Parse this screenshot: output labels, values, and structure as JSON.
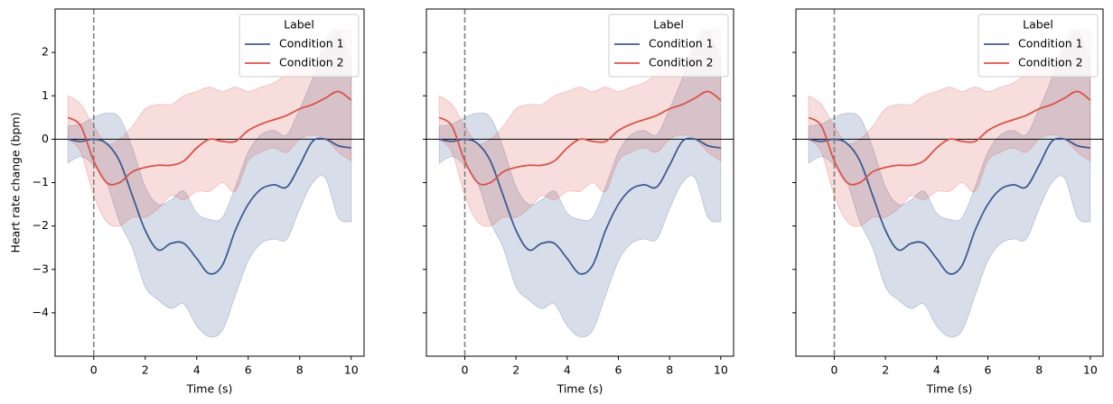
{
  "chart_data": [
    {
      "type": "line",
      "xlabel": "Time (s)",
      "ylabel": "Heart rate change (bpm)",
      "legend_title": "Label",
      "legend": "upper right",
      "show_ytick_labels": true,
      "xlim": [
        -1.5,
        10.5
      ],
      "ylim": [
        -5.0,
        3.0
      ],
      "xticks": [
        0,
        2,
        4,
        6,
        8,
        10
      ],
      "yticks": [
        {
          "value": -4,
          "label": "−4"
        },
        {
          "value": -3,
          "label": "−3"
        },
        {
          "value": -2,
          "label": "−2"
        },
        {
          "value": -1,
          "label": "−1"
        },
        0,
        1,
        2
      ],
      "axhline": 0,
      "axvline": 0,
      "x": [
        -1,
        -0.5,
        0,
        0.5,
        1,
        1.5,
        2,
        2.5,
        3,
        3.5,
        4,
        4.5,
        5,
        5.5,
        6,
        6.5,
        7,
        7.5,
        8,
        8.5,
        9,
        9.5,
        10
      ],
      "series": [
        {
          "name": "Condition 1",
          "color": "#3d5a91",
          "values": [
            0.0,
            -0.05,
            0.0,
            -0.1,
            -0.5,
            -1.3,
            -2.1,
            -2.55,
            -2.4,
            -2.4,
            -2.75,
            -3.1,
            -2.9,
            -2.1,
            -1.5,
            -1.15,
            -1.05,
            -1.1,
            -0.6,
            -0.05,
            0.0,
            -0.15,
            -0.2
          ],
          "lower": [
            -0.55,
            -0.4,
            -0.6,
            -1.0,
            -1.9,
            -2.5,
            -3.4,
            -3.7,
            -3.9,
            -3.8,
            -4.3,
            -4.55,
            -4.4,
            -3.6,
            -2.8,
            -2.4,
            -2.3,
            -2.3,
            -1.6,
            -1.0,
            -0.9,
            -1.8,
            -1.9
          ],
          "upper": [
            0.3,
            0.35,
            0.5,
            0.6,
            0.5,
            -0.2,
            -1.1,
            -1.5,
            -1.4,
            -1.2,
            -1.7,
            -1.85,
            -1.8,
            -1.1,
            -0.3,
            0.1,
            0.2,
            0.1,
            0.7,
            1.4,
            2.3,
            2.5,
            1.8
          ]
        },
        {
          "name": "Condition 2",
          "color": "#d9534a",
          "values": [
            0.5,
            0.3,
            -0.5,
            -1.0,
            -1.0,
            -0.75,
            -0.65,
            -0.6,
            -0.6,
            -0.5,
            -0.2,
            0.0,
            -0.05,
            -0.05,
            0.2,
            0.35,
            0.45,
            0.55,
            0.7,
            0.8,
            0.95,
            1.1,
            0.9
          ],
          "lower": [
            0.0,
            -0.3,
            -1.3,
            -1.9,
            -2.0,
            -1.8,
            -1.8,
            -1.6,
            -1.3,
            -1.4,
            -1.2,
            -1.2,
            -1.0,
            -1.2,
            -0.5,
            -0.3,
            -0.2,
            -0.3,
            0.0,
            0.1,
            0.0,
            -0.3,
            -0.5
          ],
          "upper": [
            1.0,
            0.8,
            0.3,
            -0.1,
            0.0,
            0.3,
            0.7,
            0.8,
            0.8,
            1.0,
            1.1,
            1.2,
            1.1,
            1.2,
            1.1,
            1.2,
            1.3,
            1.5,
            1.7,
            1.6,
            2.1,
            2.5,
            2.5
          ]
        }
      ]
    },
    {
      "type": "line",
      "xlabel": "Time (s)",
      "legend_title": "Label",
      "legend": "upper right",
      "show_ytick_labels": false,
      "xlim": [
        -1.5,
        10.5
      ],
      "ylim": [
        -5.0,
        3.0
      ],
      "xticks": [
        0,
        2,
        4,
        6,
        8,
        10
      ],
      "yticks": [
        -4,
        -3,
        -2,
        -1,
        0,
        1,
        2
      ],
      "axhline": 0,
      "axvline": 0,
      "x": [
        -1,
        -0.5,
        0,
        0.5,
        1,
        1.5,
        2,
        2.5,
        3,
        3.5,
        4,
        4.5,
        5,
        5.5,
        6,
        6.5,
        7,
        7.5,
        8,
        8.5,
        9,
        9.5,
        10
      ],
      "series": [
        {
          "name": "Condition 1",
          "color": "#3d5a91",
          "values": [
            0.0,
            -0.05,
            0.0,
            -0.1,
            -0.5,
            -1.3,
            -2.1,
            -2.55,
            -2.4,
            -2.4,
            -2.75,
            -3.1,
            -2.9,
            -2.1,
            -1.5,
            -1.15,
            -1.05,
            -1.1,
            -0.6,
            -0.05,
            0.0,
            -0.15,
            -0.2
          ],
          "lower": [
            -0.55,
            -0.4,
            -0.6,
            -1.0,
            -1.9,
            -2.5,
            -3.4,
            -3.7,
            -3.9,
            -3.8,
            -4.3,
            -4.55,
            -4.4,
            -3.6,
            -2.8,
            -2.4,
            -2.3,
            -2.3,
            -1.6,
            -1.0,
            -0.9,
            -1.8,
            -1.9
          ],
          "upper": [
            0.3,
            0.35,
            0.5,
            0.6,
            0.5,
            -0.2,
            -1.1,
            -1.5,
            -1.4,
            -1.2,
            -1.7,
            -1.85,
            -1.8,
            -1.1,
            -0.3,
            0.1,
            0.2,
            0.1,
            0.7,
            1.4,
            2.3,
            2.5,
            1.8
          ]
        },
        {
          "name": "Condition 2",
          "color": "#d9534a",
          "values": [
            0.5,
            0.3,
            -0.5,
            -1.0,
            -1.0,
            -0.75,
            -0.65,
            -0.6,
            -0.6,
            -0.5,
            -0.2,
            0.0,
            -0.05,
            -0.05,
            0.2,
            0.35,
            0.45,
            0.55,
            0.7,
            0.8,
            0.95,
            1.1,
            0.9
          ],
          "lower": [
            0.0,
            -0.3,
            -1.3,
            -1.9,
            -2.0,
            -1.8,
            -1.8,
            -1.6,
            -1.3,
            -1.4,
            -1.2,
            -1.2,
            -1.0,
            -1.2,
            -0.5,
            -0.3,
            -0.2,
            -0.3,
            0.0,
            0.1,
            0.0,
            -0.3,
            -0.5
          ],
          "upper": [
            1.0,
            0.8,
            0.3,
            -0.1,
            0.0,
            0.3,
            0.7,
            0.8,
            0.8,
            1.0,
            1.1,
            1.2,
            1.1,
            1.2,
            1.1,
            1.2,
            1.3,
            1.5,
            1.7,
            1.6,
            2.1,
            2.5,
            2.5
          ]
        }
      ]
    },
    {
      "type": "line",
      "xlabel": "Time (s)",
      "legend_title": "Label",
      "legend": "upper right",
      "show_ytick_labels": false,
      "xlim": [
        -1.5,
        10.5
      ],
      "ylim": [
        -5.0,
        3.0
      ],
      "xticks": [
        0,
        2,
        4,
        6,
        8,
        10
      ],
      "yticks": [
        -4,
        -3,
        -2,
        -1,
        0,
        1,
        2
      ],
      "axhline": 0,
      "axvline": 0,
      "x": [
        -1,
        -0.5,
        0,
        0.5,
        1,
        1.5,
        2,
        2.5,
        3,
        3.5,
        4,
        4.5,
        5,
        5.5,
        6,
        6.5,
        7,
        7.5,
        8,
        8.5,
        9,
        9.5,
        10
      ],
      "series": [
        {
          "name": "Condition 1",
          "color": "#3d5a91",
          "values": [
            0.0,
            -0.05,
            0.0,
            -0.1,
            -0.5,
            -1.3,
            -2.1,
            -2.55,
            -2.4,
            -2.4,
            -2.75,
            -3.1,
            -2.9,
            -2.1,
            -1.5,
            -1.15,
            -1.05,
            -1.1,
            -0.6,
            -0.05,
            0.0,
            -0.15,
            -0.2
          ],
          "lower": [
            -0.55,
            -0.4,
            -0.6,
            -1.0,
            -1.9,
            -2.5,
            -3.4,
            -3.7,
            -3.9,
            -3.8,
            -4.3,
            -4.55,
            -4.4,
            -3.6,
            -2.8,
            -2.4,
            -2.3,
            -2.3,
            -1.6,
            -1.0,
            -0.9,
            -1.8,
            -1.9
          ],
          "upper": [
            0.3,
            0.35,
            0.5,
            0.6,
            0.5,
            -0.2,
            -1.1,
            -1.5,
            -1.4,
            -1.2,
            -1.7,
            -1.85,
            -1.8,
            -1.1,
            -0.3,
            0.1,
            0.2,
            0.1,
            0.7,
            1.4,
            2.3,
            2.5,
            1.8
          ]
        },
        {
          "name": "Condition 2",
          "color": "#d9534a",
          "values": [
            0.5,
            0.3,
            -0.5,
            -1.0,
            -1.0,
            -0.75,
            -0.65,
            -0.6,
            -0.6,
            -0.5,
            -0.2,
            0.0,
            -0.05,
            -0.05,
            0.2,
            0.35,
            0.45,
            0.55,
            0.7,
            0.8,
            0.95,
            1.1,
            0.9
          ],
          "lower": [
            0.0,
            -0.3,
            -1.3,
            -1.9,
            -2.0,
            -1.8,
            -1.8,
            -1.6,
            -1.3,
            -1.4,
            -1.2,
            -1.2,
            -1.0,
            -1.2,
            -0.5,
            -0.3,
            -0.2,
            -0.3,
            0.0,
            0.1,
            0.0,
            -0.3,
            -0.5
          ],
          "upper": [
            1.0,
            0.8,
            0.3,
            -0.1,
            0.0,
            0.3,
            0.7,
            0.8,
            0.8,
            1.0,
            1.1,
            1.2,
            1.1,
            1.2,
            1.1,
            1.2,
            1.3,
            1.5,
            1.7,
            1.6,
            2.1,
            2.5,
            2.5
          ]
        }
      ]
    }
  ]
}
